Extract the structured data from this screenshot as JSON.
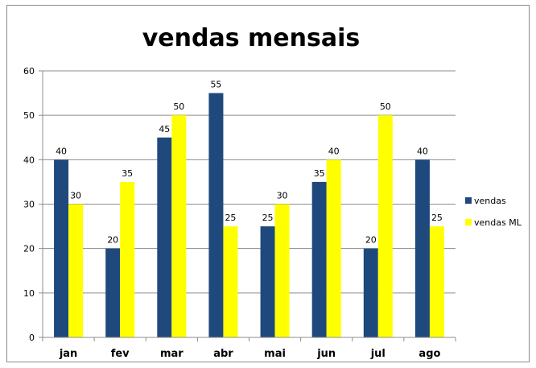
{
  "chart_data": {
    "type": "bar",
    "title": "vendas mensais",
    "categories": [
      "jan",
      "fev",
      "mar",
      "abr",
      "mai",
      "jun",
      "jul",
      "ago"
    ],
    "series": [
      {
        "name": "vendas",
        "color": "#1F497D",
        "values": [
          40,
          20,
          45,
          55,
          25,
          35,
          20,
          40
        ]
      },
      {
        "name": "vendas ML",
        "color": "#FFFF00",
        "values": [
          30,
          35,
          50,
          25,
          30,
          40,
          50,
          25
        ]
      }
    ],
    "ylim": [
      0,
      60
    ],
    "yticks": [
      0,
      10,
      20,
      30,
      40,
      50,
      60
    ],
    "grid": true,
    "legend_position": "right",
    "data_labels": true
  }
}
